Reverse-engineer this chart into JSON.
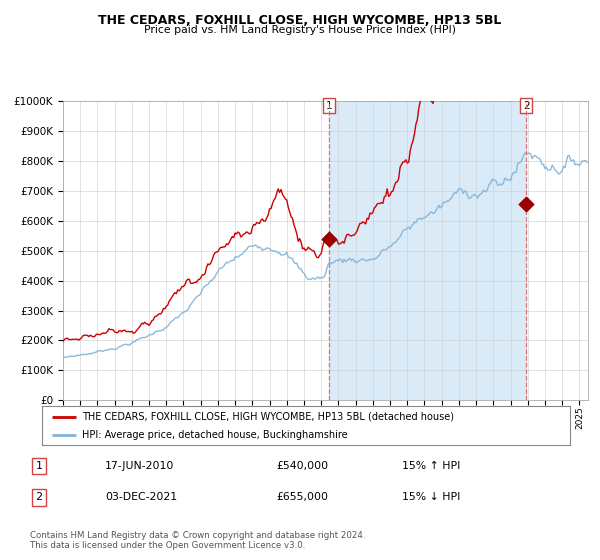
{
  "title": "THE CEDARS, FOXHILL CLOSE, HIGH WYCOMBE, HP13 5BL",
  "subtitle": "Price paid vs. HM Land Registry's House Price Index (HPI)",
  "legend_line1": "THE CEDARS, FOXHILL CLOSE, HIGH WYCOMBE, HP13 5BL (detached house)",
  "legend_line2": "HPI: Average price, detached house, Buckinghamshire",
  "table_rows": [
    [
      "1",
      "17-JUN-2010",
      "£540,000",
      "15% ↑ HPI"
    ],
    [
      "2",
      "03-DEC-2021",
      "£655,000",
      "15% ↓ HPI"
    ]
  ],
  "footer": "Contains HM Land Registry data © Crown copyright and database right 2024.\nThis data is licensed under the Open Government Licence v3.0.",
  "hpi_color": "#7fb3d9",
  "price_color": "#cc0000",
  "bg_shade_color": "#daeaf7",
  "marker_color": "#990000",
  "vline_color": "#dd6666",
  "sale1_year": 2010.46,
  "sale1_price": 540000,
  "sale2_year": 2021.92,
  "sale2_price": 655000,
  "ylim_bottom": 0,
  "ylim_top": 1000000,
  "xlim_left": 1995.0,
  "xlim_right": 2025.5
}
